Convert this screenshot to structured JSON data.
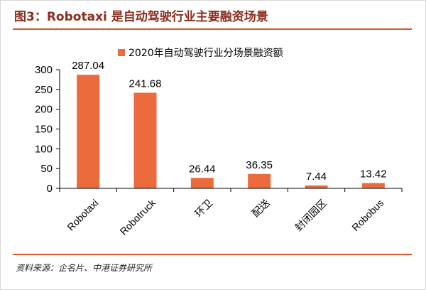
{
  "figure": {
    "title": "图3：Robotaxi 是自动驾驶行业主要融资场景",
    "source": "资料来源：企名片、中港证券研究所"
  },
  "colors": {
    "bar": "#ec6b3c",
    "accent_rule": "#e0552b",
    "title": "#8c2d1d"
  },
  "chart_data": {
    "type": "bar",
    "title": "",
    "xlabel": "",
    "ylabel": "",
    "ylim": [
      0,
      300
    ],
    "yticks": [
      0,
      50,
      100,
      150,
      200,
      250,
      300
    ],
    "categories": [
      "Robotaxi",
      "Robotruck",
      "环卫",
      "配送",
      "封闭园区",
      "Robobus"
    ],
    "series": [
      {
        "name": "2020年自动驾驶行业分场景融资额",
        "values": [
          287.04,
          241.68,
          26.44,
          36.35,
          7.44,
          13.42
        ],
        "labels": [
          "287.04",
          "241.68",
          "26.44",
          "36.35",
          "7.44",
          "13.42"
        ]
      }
    ],
    "legend": "top-center",
    "grid": false
  }
}
